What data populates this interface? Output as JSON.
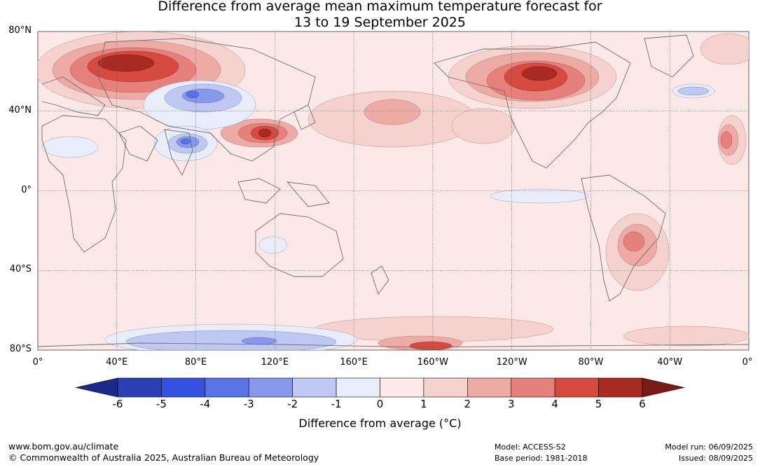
{
  "title_line1": "Difference from average mean maximum temperature forecast for",
  "title_line2": "13 to 19 September 2025",
  "map": {
    "lat_labels": [
      "80°N",
      "40°N",
      "0°",
      "40°S",
      "80°S"
    ],
    "lat_values": [
      80,
      40,
      0,
      -40,
      -80
    ],
    "lon_labels": [
      "0°",
      "40°E",
      "80°E",
      "120°E",
      "160°E",
      "160°W",
      "120°W",
      "80°W",
      "40°W",
      "0°"
    ],
    "lon_values": [
      0,
      40,
      80,
      120,
      160,
      200,
      240,
      280,
      320,
      360
    ],
    "background_color": "#fce8e6",
    "coastline_color": "#6e6e6e",
    "gridline_style": "dotted"
  },
  "colorbar": {
    "tick_labels": [
      "-6",
      "-5",
      "-4",
      "-3",
      "-2",
      "-1",
      "0",
      "1",
      "2",
      "3",
      "4",
      "5",
      "6"
    ],
    "colors": [
      "#1a2a8a",
      "#2a3fb5",
      "#3451e0",
      "#5a73e4",
      "#8898ea",
      "#bfc8f3",
      "#e9ecfb",
      "#fde9e7",
      "#f6d2cf",
      "#eeaaa5",
      "#e6807a",
      "#d64a3f",
      "#a82a22",
      "#7a1a14"
    ],
    "label": "Difference from average (°C)"
  },
  "footer": {
    "website": "www.bom.gov.au/climate",
    "copyright": "© Commonwealth of Australia 2025, Australian Bureau of Meteorology",
    "model": "Model: ACCESS-S2",
    "base_period": "Base period: 1981-2018",
    "model_run": "Model run: 06/09/2025",
    "issued": "Issued: 08/09/2025"
  }
}
